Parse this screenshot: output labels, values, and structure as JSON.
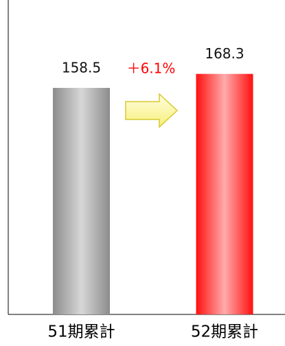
{
  "chart_data": {
    "type": "bar",
    "categories": [
      "51期累計",
      "52期累計"
    ],
    "values": [
      158.5,
      168.3
    ],
    "colors": [
      "#8c8c8c",
      "#ff1010"
    ],
    "ylim": [
      0,
      220
    ],
    "annotation": "＋6.1%",
    "annotation_color": "#ff0000"
  }
}
